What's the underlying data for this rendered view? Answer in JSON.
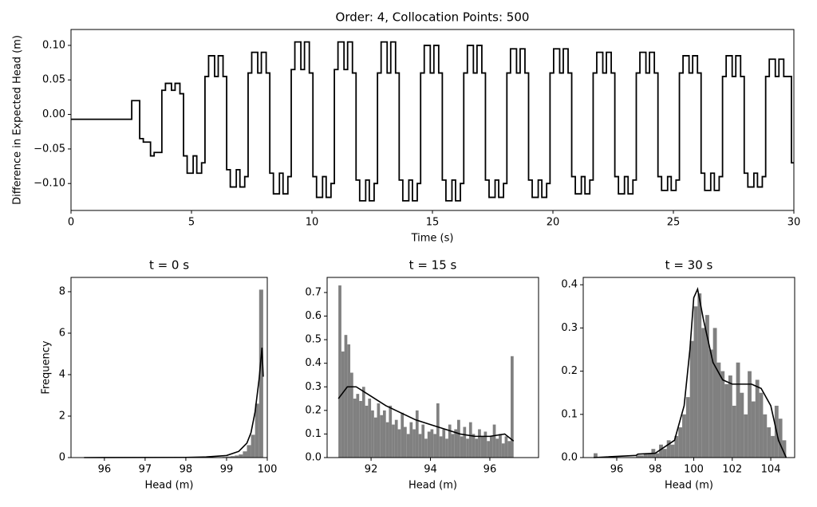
{
  "chart_data": [
    {
      "type": "line",
      "title": "Order: 4, Collocation Points: 500",
      "xlabel": "Time (s)",
      "ylabel": "Difference in Expected Head (m)",
      "color": "#000000",
      "drawstyle": "steps-post",
      "xlim": [
        0,
        30
      ],
      "xticks": [
        0,
        5,
        10,
        15,
        20,
        25,
        30
      ],
      "ylim": [
        -0.139,
        0.123
      ],
      "yticks": [
        {
          "value": 0.1,
          "label": "0.10"
        },
        {
          "value": 0.05,
          "label": "0.05"
        },
        {
          "value": 0,
          "label": "0.00"
        },
        {
          "value": -0.05,
          "label": "−0.05"
        },
        {
          "value": -0.1,
          "label": "−0.10"
        }
      ],
      "x": [
        0,
        2.52,
        2.85,
        3.0,
        3.3,
        3.45,
        3.77,
        3.92,
        4.17,
        4.32,
        4.52,
        4.67,
        4.82,
        5.07,
        5.22,
        5.42,
        5.56,
        5.71,
        5.96,
        6.11,
        6.31,
        6.46,
        6.61,
        6.86,
        7.01,
        7.21,
        7.35,
        7.5,
        7.75,
        7.9,
        8.1,
        8.25,
        8.4,
        8.65,
        8.8,
        9.0,
        9.14,
        9.29,
        9.54,
        9.69,
        9.89,
        10.04,
        10.19,
        10.44,
        10.59,
        10.79,
        10.93,
        11.08,
        11.33,
        11.48,
        11.68,
        11.83,
        11.98,
        12.23,
        12.38,
        12.58,
        12.72,
        12.87,
        13.12,
        13.27,
        13.47,
        13.62,
        13.77,
        14.02,
        14.17,
        14.37,
        14.51,
        14.66,
        14.91,
        15.06,
        15.26,
        15.41,
        15.56,
        15.81,
        15.96,
        16.16,
        16.3,
        16.45,
        16.7,
        16.85,
        17.05,
        17.2,
        17.35,
        17.6,
        17.75,
        17.95,
        18.09,
        18.24,
        18.49,
        18.64,
        18.84,
        18.99,
        19.14,
        19.39,
        19.54,
        19.74,
        19.88,
        20.03,
        20.28,
        20.43,
        20.63,
        20.78,
        20.93,
        21.18,
        21.33,
        21.53,
        21.67,
        21.82,
        22.07,
        22.22,
        22.42,
        22.57,
        22.72,
        22.97,
        23.12,
        23.32,
        23.46,
        23.61,
        23.86,
        24.01,
        24.21,
        24.36,
        24.51,
        24.76,
        24.91,
        25.11,
        25.25,
        25.4,
        25.65,
        25.8,
        26.0,
        26.15,
        26.3,
        26.55,
        26.7,
        26.9,
        27.04,
        27.19,
        27.44,
        27.59,
        27.79,
        27.94,
        28.09,
        28.34,
        28.49,
        28.69,
        28.83,
        28.98,
        29.23,
        29.38,
        29.58,
        29.9,
        30
      ],
      "values": [
        -0.007,
        0.02,
        -0.035,
        -0.04,
        -0.06,
        -0.055,
        0.035,
        0.045,
        0.035,
        0.045,
        0.03,
        -0.06,
        -0.085,
        -0.06,
        -0.085,
        -0.07,
        0.055,
        0.085,
        0.055,
        0.085,
        0.055,
        -0.08,
        -0.105,
        -0.08,
        -0.105,
        -0.09,
        0.06,
        0.09,
        0.06,
        0.09,
        0.06,
        -0.085,
        -0.115,
        -0.085,
        -0.115,
        -0.09,
        0.065,
        0.105,
        0.065,
        0.105,
        0.06,
        -0.09,
        -0.12,
        -0.09,
        -0.12,
        -0.1,
        0.065,
        0.105,
        0.065,
        0.105,
        0.06,
        -0.095,
        -0.125,
        -0.095,
        -0.125,
        -0.1,
        0.06,
        0.105,
        0.06,
        0.105,
        0.06,
        -0.095,
        -0.125,
        -0.095,
        -0.125,
        -0.1,
        0.06,
        0.1,
        0.06,
        0.1,
        0.06,
        -0.095,
        -0.125,
        -0.095,
        -0.125,
        -0.1,
        0.06,
        0.1,
        0.06,
        0.1,
        0.06,
        -0.095,
        -0.12,
        -0.095,
        -0.12,
        -0.1,
        0.06,
        0.095,
        0.06,
        0.095,
        0.06,
        -0.095,
        -0.12,
        -0.095,
        -0.12,
        -0.1,
        0.06,
        0.095,
        0.06,
        0.095,
        0.06,
        -0.09,
        -0.115,
        -0.09,
        -0.115,
        -0.095,
        0.06,
        0.09,
        0.06,
        0.09,
        0.06,
        -0.09,
        -0.115,
        -0.09,
        -0.115,
        -0.095,
        0.06,
        0.09,
        0.06,
        0.09,
        0.06,
        -0.09,
        -0.11,
        -0.09,
        -0.11,
        -0.095,
        0.06,
        0.085,
        0.06,
        0.085,
        0.06,
        -0.085,
        -0.11,
        -0.085,
        -0.11,
        -0.09,
        0.055,
        0.085,
        0.055,
        0.085,
        0.055,
        -0.085,
        -0.105,
        -0.085,
        -0.105,
        -0.09,
        0.055,
        0.08,
        0.055,
        0.08,
        0.055,
        -0.07,
        -0.07
      ]
    },
    {
      "type": "histogram",
      "title": "t = 0 s",
      "xlabel": "Head (m)",
      "ylabel": "Frequency",
      "color": "#808080",
      "xlim": [
        95.18,
        100
      ],
      "xticks": [
        96,
        97,
        98,
        99,
        100
      ],
      "ylim": [
        0,
        8.69
      ],
      "yticks": [
        0,
        2,
        4,
        6,
        8
      ],
      "bins": [
        95.5,
        95.6,
        95.7,
        95.8,
        95.9,
        96.0,
        96.1,
        96.2,
        96.3,
        96.4,
        96.5,
        96.6,
        96.7,
        96.8,
        96.9,
        97.0,
        97.1,
        97.2,
        97.3,
        97.4,
        97.5,
        97.6,
        97.7,
        97.8,
        97.9,
        98.0,
        98.1,
        98.2,
        98.3,
        98.4,
        98.5,
        98.6,
        98.7,
        98.8,
        98.9,
        99.0,
        99.1,
        99.2,
        99.3,
        99.4,
        99.5,
        99.6,
        99.7,
        99.8,
        99.9
      ],
      "values": [
        0,
        0,
        0,
        0,
        0,
        0,
        0,
        0,
        0,
        0,
        0,
        0,
        0,
        0,
        0,
        0,
        0,
        0,
        0,
        0,
        0,
        0,
        0,
        0,
        0,
        0,
        0,
        0,
        0,
        0,
        0.01,
        0.01,
        0.02,
        0.02,
        0.03,
        0.05,
        0.07,
        0.1,
        0.15,
        0.3,
        0.6,
        1.1,
        2.6,
        8.1
      ],
      "kde": {
        "color": "#000000",
        "x": [
          95.5,
          98,
          98.5,
          99,
          99.3,
          99.5,
          99.6,
          99.7,
          99.8,
          99.87,
          99.9
        ],
        "values": [
          0,
          0.01,
          0.03,
          0.1,
          0.3,
          0.7,
          1.2,
          2.2,
          3.8,
          5.3,
          3.9
        ]
      }
    },
    {
      "type": "histogram",
      "title": "t = 15 s",
      "xlabel": "Head (m)",
      "color": "#808080",
      "xlim": [
        90.52,
        97.64
      ],
      "xticks": [
        92,
        94,
        96
      ],
      "ylim": [
        0,
        0.764
      ],
      "yticks": [
        {
          "value": 0,
          "label": "0.0"
        },
        {
          "value": 0.1,
          "label": "0.1"
        },
        {
          "value": 0.2,
          "label": "0.2"
        },
        {
          "value": 0.3,
          "label": "0.3"
        },
        {
          "value": 0.4,
          "label": "0.4"
        },
        {
          "value": 0.5,
          "label": "0.5"
        },
        {
          "value": 0.6,
          "label": "0.6"
        },
        {
          "value": 0.7,
          "label": "0.7"
        }
      ],
      "bins": [
        90.9,
        91.0,
        91.1,
        91.2,
        91.3,
        91.4,
        91.5,
        91.6,
        91.7,
        91.8,
        91.9,
        92.0,
        92.1,
        92.2,
        92.3,
        92.4,
        92.5,
        92.6,
        92.7,
        92.8,
        92.9,
        93.0,
        93.1,
        93.2,
        93.3,
        93.4,
        93.5,
        93.6,
        93.7,
        93.8,
        93.9,
        94.0,
        94.1,
        94.2,
        94.3,
        94.4,
        94.5,
        94.6,
        94.7,
        94.8,
        94.9,
        95.0,
        95.1,
        95.2,
        95.3,
        95.4,
        95.5,
        95.6,
        95.7,
        95.8,
        95.9,
        96.0,
        96.1,
        96.2,
        96.3,
        96.4,
        96.5,
        96.6,
        96.7,
        96.8
      ],
      "values": [
        0.73,
        0.45,
        0.52,
        0.48,
        0.36,
        0.25,
        0.27,
        0.24,
        0.3,
        0.22,
        0.25,
        0.2,
        0.17,
        0.23,
        0.18,
        0.2,
        0.15,
        0.22,
        0.14,
        0.16,
        0.12,
        0.19,
        0.13,
        0.1,
        0.15,
        0.12,
        0.2,
        0.1,
        0.14,
        0.08,
        0.11,
        0.12,
        0.1,
        0.23,
        0.09,
        0.12,
        0.08,
        0.14,
        0.1,
        0.12,
        0.16,
        0.09,
        0.13,
        0.08,
        0.15,
        0.1,
        0.08,
        0.12,
        0.09,
        0.11,
        0.07,
        0.09,
        0.14,
        0.08,
        0.1,
        0.06,
        0.09,
        0.07,
        0.43
      ],
      "kde": {
        "color": "#000000",
        "x": [
          90.9,
          91.2,
          91.5,
          92,
          92.5,
          93,
          93.5,
          94,
          94.5,
          95,
          95.5,
          96,
          96.5,
          96.8
        ],
        "values": [
          0.25,
          0.3,
          0.3,
          0.26,
          0.22,
          0.19,
          0.16,
          0.14,
          0.12,
          0.1,
          0.09,
          0.09,
          0.1,
          0.07
        ]
      }
    },
    {
      "type": "histogram",
      "title": "t = 30 s",
      "xlabel": "Head (m)",
      "color": "#808080",
      "xlim": [
        94.26,
        105.24
      ],
      "xticks": [
        96,
        98,
        100,
        102,
        104
      ],
      "ylim": [
        0,
        0.417
      ],
      "yticks": [
        {
          "value": 0,
          "label": "0.0"
        },
        {
          "value": 0.1,
          "label": "0.1"
        },
        {
          "value": 0.2,
          "label": "0.2"
        },
        {
          "value": 0.3,
          "label": "0.3"
        },
        {
          "value": 0.4,
          "label": "0.4"
        }
      ],
      "bins": [
        94.8,
        95.0,
        95.2,
        95.4,
        95.6,
        95.8,
        96.0,
        96.2,
        96.4,
        96.6,
        96.8,
        97.0,
        97.2,
        97.4,
        97.6,
        97.8,
        98.0,
        98.2,
        98.4,
        98.6,
        98.8,
        99.0,
        99.2,
        99.4,
        99.6,
        99.8,
        100.0,
        100.2,
        100.4,
        100.6,
        100.8,
        101.0,
        101.2,
        101.4,
        101.6,
        101.8,
        102.0,
        102.2,
        102.4,
        102.6,
        102.8,
        103.0,
        103.2,
        103.4,
        103.6,
        103.8,
        104.0,
        104.2,
        104.4,
        104.6,
        104.8
      ],
      "values": [
        0.01,
        0,
        0,
        0,
        0,
        0,
        0,
        0,
        0,
        0,
        0,
        0.005,
        0.005,
        0.01,
        0.01,
        0.02,
        0.01,
        0.03,
        0.02,
        0.04,
        0.03,
        0.05,
        0.07,
        0.1,
        0.14,
        0.27,
        0.35,
        0.38,
        0.3,
        0.33,
        0.25,
        0.3,
        0.22,
        0.2,
        0.17,
        0.19,
        0.12,
        0.22,
        0.15,
        0.1,
        0.2,
        0.13,
        0.18,
        0.15,
        0.1,
        0.07,
        0.05,
        0.12,
        0.09,
        0.04
      ],
      "kde": {
        "color": "#000000",
        "x": [
          94.8,
          97,
          97.1,
          98,
          99,
          99.5,
          99.8,
          100,
          100.2,
          100.5,
          101,
          101.5,
          102,
          102.5,
          103,
          103.5,
          104,
          104.4,
          104.8
        ],
        "values": [
          0,
          0.005,
          0.008,
          0.01,
          0.04,
          0.12,
          0.25,
          0.37,
          0.39,
          0.32,
          0.22,
          0.18,
          0.17,
          0.17,
          0.17,
          0.16,
          0.12,
          0.04,
          0
        ]
      }
    }
  ]
}
